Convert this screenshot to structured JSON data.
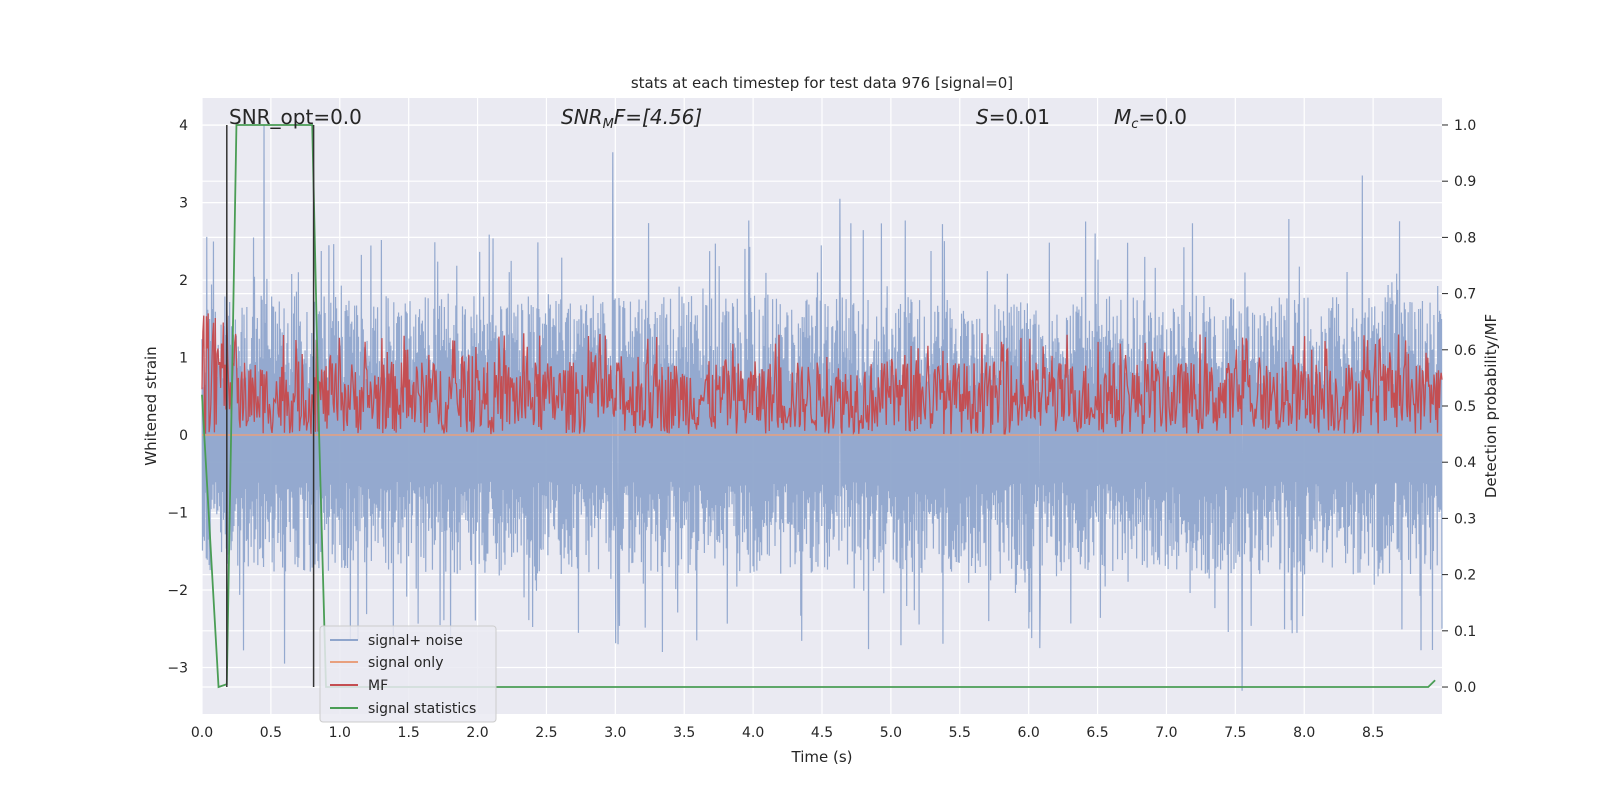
{
  "chart_data": {
    "type": "line",
    "title": "stats at each timestep for test data 976 [signal=0]",
    "xlabel": "Time (s)",
    "ylabel": "Whitened strain",
    "y2label": "Detection probability/MF",
    "xlim": [
      0.0,
      9.0
    ],
    "ylim": [
      -3.6,
      4.35
    ],
    "y2lim": [
      -0.048,
      1.048
    ],
    "xticks": [
      0.0,
      0.5,
      1.0,
      1.5,
      2.0,
      2.5,
      3.0,
      3.5,
      4.0,
      4.5,
      5.0,
      5.5,
      6.0,
      6.5,
      7.0,
      7.5,
      8.0,
      8.5
    ],
    "xtick_labels": [
      "0.0",
      "0.5",
      "1.0",
      "1.5",
      "2.0",
      "2.5",
      "3.0",
      "3.5",
      "4.0",
      "4.5",
      "5.0",
      "5.5",
      "6.0",
      "6.5",
      "7.0",
      "7.5",
      "8.0",
      "8.5"
    ],
    "yticks": [
      4,
      3,
      2,
      1,
      0,
      -1,
      -2,
      -3
    ],
    "ytick_labels": [
      "4",
      "3",
      "2",
      "1",
      "0",
      "−1",
      "−2",
      "−3"
    ],
    "y2ticks": [
      1.0,
      0.9,
      0.8,
      0.7,
      0.6,
      0.5,
      0.4,
      0.3,
      0.2,
      0.1,
      0.0
    ],
    "y2tick_labels": [
      "1.0",
      "0.9",
      "0.8",
      "0.7",
      "0.6",
      "0.5",
      "0.4",
      "0.3",
      "0.2",
      "0.1",
      "0.0"
    ],
    "grid": true,
    "legend_position": "lower-left",
    "annotations": {
      "snr_opt": "SNR_opt=0.0",
      "snr_mf_sym": "SNR",
      "snr_mf_sub": "M",
      "snr_mf_rest": "F=[4.56]",
      "s_sym": "S",
      "s_rest": "=0.01",
      "mc_sym": "M",
      "mc_sub": "c",
      "mc_rest": "=0.0"
    },
    "series": [
      {
        "name": "signal+ noise",
        "axis": "left",
        "color": "#8fa5cc",
        "kind": "noise",
        "range": [
          -1.8,
          1.8
        ],
        "spikes": [
          [
            0.45,
            4.0
          ],
          [
            2.98,
            3.65
          ],
          [
            4.63,
            3.05
          ],
          [
            8.42,
            3.35
          ],
          [
            7.55,
            -3.3
          ],
          [
            0.6,
            -2.95
          ],
          [
            3.02,
            -2.7
          ],
          [
            3.34,
            -2.8
          ],
          [
            6.08,
            -2.75
          ],
          [
            9.0,
            -2.5
          ]
        ]
      },
      {
        "name": "signal only",
        "axis": "left",
        "color": "#e8a07e",
        "x": [
          0.0,
          9.0
        ],
        "y": [
          0.0,
          0.0
        ]
      },
      {
        "name": "MF",
        "axis": "right",
        "color": "#c44e52",
        "kind": "band",
        "range": [
          0.45,
          0.58
        ]
      },
      {
        "name": "signal statistics",
        "axis": "right",
        "color": "#4a9d55",
        "x": [
          0.0,
          0.12,
          0.18,
          0.25,
          0.8,
          0.85,
          0.9,
          8.9,
          8.95
        ],
        "y": [
          0.52,
          0.0,
          0.005,
          1.0,
          1.0,
          0.45,
          0.0,
          0.0,
          0.012
        ]
      }
    ],
    "vlines": [
      0.18,
      0.81
    ],
    "vline_color": "#333333"
  },
  "icons": {
    "background": "#eaeaf2",
    "grid": "#ffffff",
    "text": "#262626"
  }
}
